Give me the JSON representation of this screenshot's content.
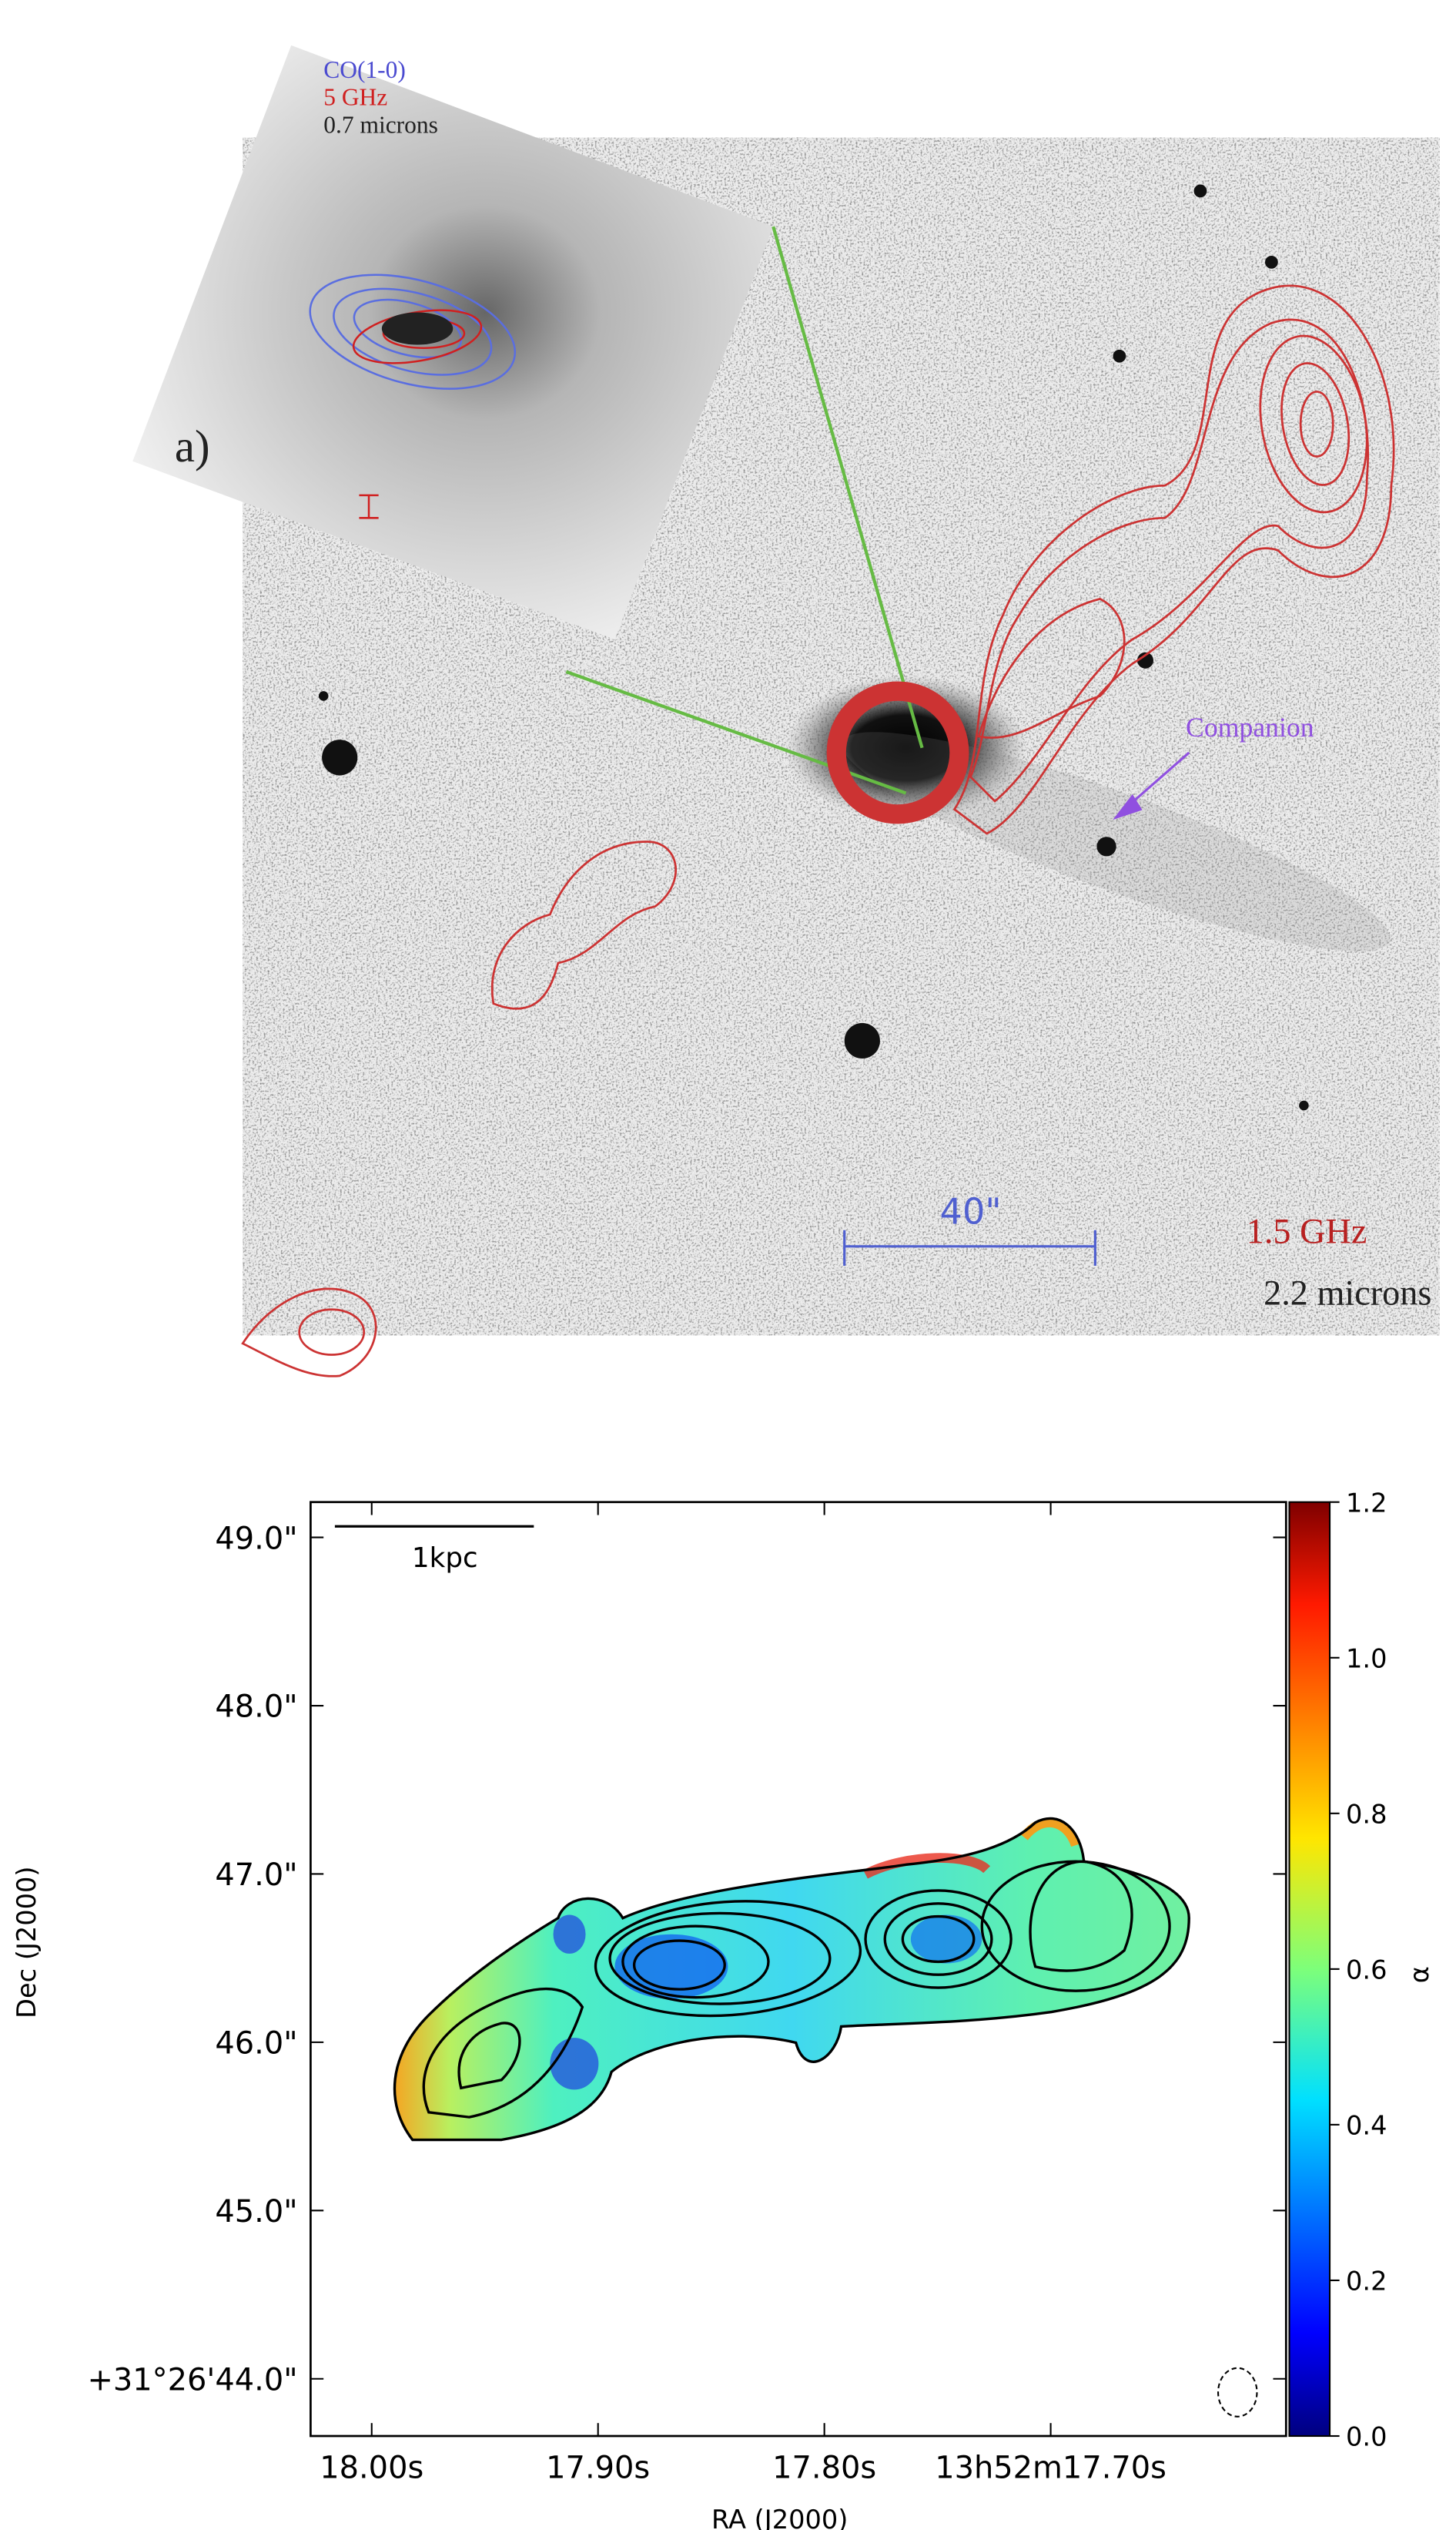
{
  "panel_a": {
    "label": "a)",
    "inset_legend": [
      "CO(1-0)",
      "5 GHz",
      "0.7 microns"
    ],
    "annotation": "Companion",
    "scale_bar": "40\"",
    "bands": [
      "1.5 GHz",
      "2.2 microns"
    ]
  },
  "panel_b": {
    "xlabel": "RA (J2000)",
    "ylabel": "Dec (J2000)",
    "scale_bar": "1kpc",
    "xlim": [
      18.027,
      17.596
    ],
    "xticks": [
      {
        "value": 18.0,
        "label": "18.00s"
      },
      {
        "value": 17.9,
        "label": "17.90s"
      },
      {
        "value": 17.8,
        "label": "17.80s"
      },
      {
        "value": 17.7,
        "label": "13h52m17.70s"
      }
    ],
    "ylim": [
      43.66,
      49.21
    ],
    "yticks": [
      {
        "value": 44,
        "label": "+31°26'44.0\""
      },
      {
        "value": 45,
        "label": "45.0\""
      },
      {
        "value": 46,
        "label": "46.0\""
      },
      {
        "value": 47,
        "label": "47.0\""
      },
      {
        "value": 48,
        "label": "48.0\""
      },
      {
        "value": 49,
        "label": "49.0\""
      }
    ],
    "colorbar": {
      "label": "α",
      "lim": [
        0,
        1.2
      ],
      "ticks": [
        {
          "value": 0,
          "label": "0.0"
        },
        0.2,
        0.4,
        0.6,
        0.8,
        {
          "value": 1,
          "label": "1.0"
        },
        1.2
      ]
    }
  }
}
